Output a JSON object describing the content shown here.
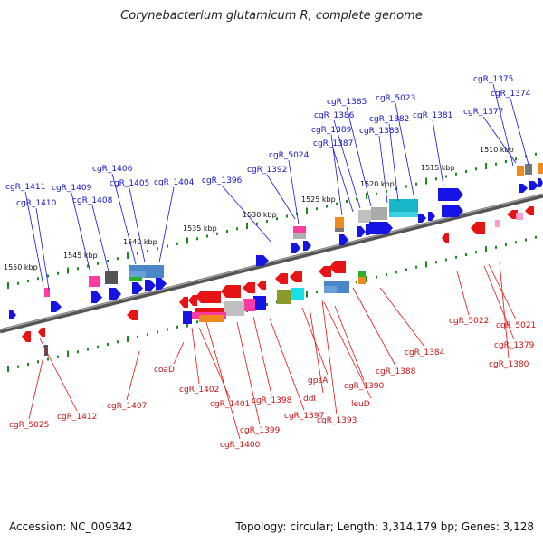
{
  "title": "Corynebacterium glutamicum R, complete genome",
  "accession": "Accession: NC_009342",
  "summary": "Topology: circular; Length: 3,314,179 bp; Genes: 3,128",
  "ruler_labels": [
    "1510 kbp",
    "1515 kbp",
    "1520 kbp",
    "1525 kbp",
    "1530 kbp",
    "1535 kbp",
    "1540 kbp",
    "1545 kbp",
    "1550 kbp"
  ],
  "top_labels": [
    "cgR_1375",
    "cgR_1374",
    "cgR_1377",
    "cgR_1381",
    "cgR_5023",
    "cgR_1385",
    "cgR_1382",
    "cgR_1386",
    "cgR_1383",
    "cgR_1389",
    "cgR_1387",
    "cgR_5024",
    "cgR_1392",
    "cgR_1396",
    "cgR_1406",
    "cgR_1404",
    "cgR_1405",
    "cgR_1409",
    "cgR_1408",
    "cgR_1411",
    "cgR_1410"
  ],
  "bottom_labels": [
    "cgR_5022",
    "cgR_5021",
    "cgR_1379",
    "cgR_1380",
    "cgR_1384",
    "cgR_1388",
    "cgR_1390",
    "leuD",
    "cgR_1393",
    "ddl",
    "gpsA",
    "cgR_1397",
    "cgR_1398",
    "cgR_1399",
    "cgR_1400",
    "cgR_1401",
    "cgR_1402",
    "coaD",
    "cgR_1407",
    "cgR_1412",
    "cgR_5025"
  ],
  "colors": {
    "forward": "#1414e6",
    "reverse": "#e61414",
    "tick": "#1a8a1a",
    "backbone": "#707070"
  }
}
